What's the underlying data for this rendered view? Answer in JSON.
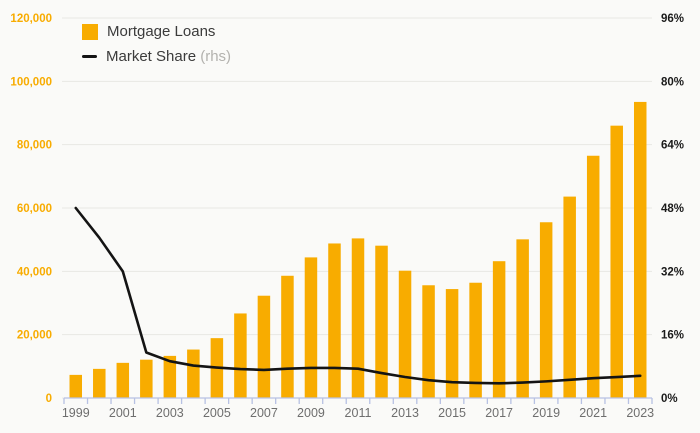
{
  "legend": {
    "bar_label": "Mortgage Loans",
    "line_label": "Market Share",
    "line_note": "(rhs)"
  },
  "colors": {
    "bar": "#F8AC00",
    "line": "#141414",
    "left_axis_label": "#F8AC00",
    "right_axis_label": "#1a1a1a",
    "grid": "#E8E8E4",
    "x_axis": "#B7C1E3",
    "x_label": "#6E6E6E",
    "background": "#FAFAF8"
  },
  "chart_data": {
    "type": "bar",
    "title": "",
    "categories": [
      "1999",
      "2000",
      "2001",
      "2002",
      "2003",
      "2004",
      "2005",
      "2006",
      "2007",
      "2008",
      "2009",
      "2010",
      "2011",
      "2012",
      "2013",
      "2014",
      "2015",
      "2016",
      "2017",
      "2018",
      "2019",
      "2020",
      "2021",
      "2022",
      "2023"
    ],
    "series": [
      {
        "name": "Mortgage Loans",
        "type": "bar",
        "axis": "left",
        "values": [
          7300,
          9200,
          11100,
          12100,
          13300,
          15300,
          18900,
          26700,
          32300,
          38600,
          44400,
          48800,
          50400,
          48100,
          40200,
          35600,
          34400,
          36400,
          43200,
          50100,
          55500,
          63600,
          76500,
          86000,
          93500
        ]
      },
      {
        "name": "Market Share (rhs)",
        "type": "line",
        "axis": "right",
        "values": [
          48.0,
          40.5,
          32.0,
          11.5,
          9.3,
          8.2,
          7.7,
          7.3,
          7.1,
          7.4,
          7.6,
          7.6,
          7.4,
          6.3,
          5.3,
          4.5,
          4.0,
          3.8,
          3.7,
          3.9,
          4.2,
          4.6,
          5.0,
          5.3,
          5.6
        ]
      }
    ],
    "left_axis": {
      "min": 0,
      "max": 120000,
      "tick_step": 20000,
      "tick_labels": [
        "0",
        "20,000",
        "40,000",
        "60,000",
        "80,000",
        "100,000",
        "120,000"
      ]
    },
    "right_axis": {
      "min": 0,
      "max": 96,
      "tick_step": 16,
      "tick_labels": [
        "0%",
        "16%",
        "32%",
        "48%",
        "64%",
        "80%",
        "96%"
      ]
    },
    "x_tick_labels": [
      "1999",
      "2001",
      "2003",
      "2005",
      "2007",
      "2009",
      "2011",
      "2013",
      "2015",
      "2017",
      "2019",
      "2021",
      "2023"
    ],
    "legend_position": "top-left",
    "grid": true
  }
}
